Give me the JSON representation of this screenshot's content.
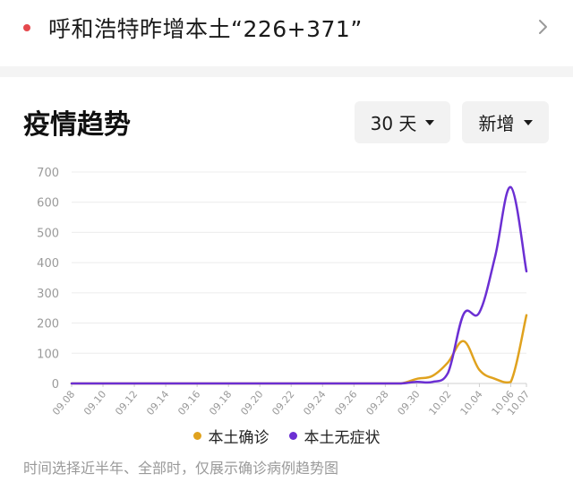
{
  "headline": {
    "text": "呼和浩特昨增本土“226+371”",
    "dot_color": "#e5484d",
    "arrow_icon": "chevron-right-icon"
  },
  "section": {
    "title": "疫情趋势",
    "range_selector": "30 天",
    "metric_selector": "新增"
  },
  "colors": {
    "confirmed": "#e0a21e",
    "asymptomatic": "#6b2fd3",
    "grid": "#ececec",
    "axis_text": "#9a9a9a"
  },
  "footnote": "时间选择近半年、全部时，仅展示确诊病例趋势图",
  "chart_data": {
    "type": "line",
    "title": "",
    "xlabel": "",
    "ylabel": "",
    "ylim": [
      0,
      700
    ],
    "yticks": [
      0,
      100,
      200,
      300,
      400,
      500,
      600,
      700
    ],
    "x_start": "09.08",
    "x_end": "10.07",
    "x_tick_labels": [
      "09.08",
      "09.10",
      "09.12",
      "09.14",
      "09.16",
      "09.18",
      "09.20",
      "09.22",
      "09.24",
      "09.26",
      "09.28",
      "09.30",
      "10.02",
      "10.04",
      "10.06",
      "10.07"
    ],
    "x": [
      "09.08",
      "09.09",
      "09.10",
      "09.11",
      "09.12",
      "09.13",
      "09.14",
      "09.15",
      "09.16",
      "09.17",
      "09.18",
      "09.19",
      "09.20",
      "09.21",
      "09.22",
      "09.23",
      "09.24",
      "09.25",
      "09.26",
      "09.27",
      "09.28",
      "09.29",
      "09.30",
      "10.01",
      "10.02",
      "10.03",
      "10.04",
      "10.05",
      "10.06",
      "10.07"
    ],
    "grid": true,
    "legend_position": "bottom",
    "series": [
      {
        "name": "本土确诊",
        "color": "#e0a21e",
        "values": [
          0,
          0,
          0,
          0,
          0,
          0,
          0,
          0,
          0,
          0,
          0,
          0,
          0,
          0,
          0,
          0,
          0,
          0,
          0,
          0,
          0,
          0,
          15,
          25,
          70,
          140,
          45,
          15,
          5,
          226
        ]
      },
      {
        "name": "本土无症状",
        "color": "#6b2fd3",
        "values": [
          0,
          0,
          0,
          0,
          0,
          0,
          0,
          0,
          0,
          0,
          0,
          0,
          0,
          0,
          0,
          0,
          0,
          0,
          0,
          0,
          0,
          0,
          5,
          5,
          35,
          230,
          235,
          420,
          650,
          371
        ]
      }
    ]
  }
}
